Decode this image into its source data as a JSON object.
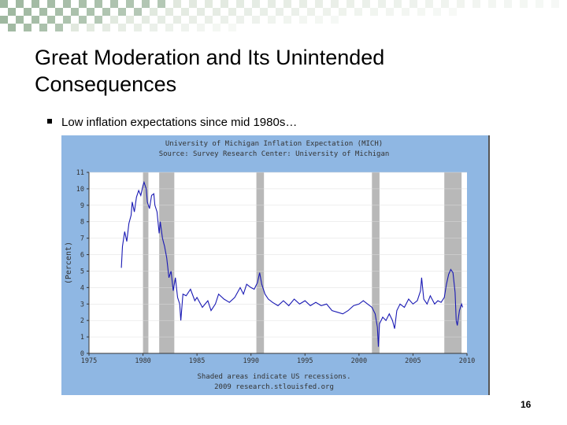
{
  "slide": {
    "title_line1": "Great Moderation and Its Unintended",
    "title_line2": "Consequences",
    "bullet": "Low inflation expectations since mid 1980s…",
    "page_number": "16"
  },
  "colors": {
    "chart_bg": "#8fb7e3",
    "plot_bg": "#ffffff",
    "recession": "#b8b8b8",
    "line": "#1a1ab4",
    "checker_a": "#9fb8a0",
    "checker_b": "#d7e1d4"
  },
  "chart_data": {
    "type": "line",
    "title": "University of Michigan Inflation Expectation (MICH)",
    "source": "Source: Survey Research Center: University of Michigan",
    "ylabel": "(Percent)",
    "footer_line1": "Shaded areas indicate US recessions.",
    "footer_line2": "2009 research.stlouisfed.org",
    "xlim": [
      1975,
      2010
    ],
    "ylim": [
      0,
      11
    ],
    "x_ticks": [
      "1975",
      "1980",
      "1985",
      "1990",
      "1995",
      "2000",
      "2005",
      "2010"
    ],
    "y_ticks": [
      "0",
      "1",
      "2",
      "3",
      "4",
      "5",
      "6",
      "7",
      "8",
      "9",
      "10",
      "11"
    ],
    "recessions": [
      [
        1980.0,
        1980.5
      ],
      [
        1981.5,
        1982.9
      ],
      [
        1990.5,
        1991.2
      ],
      [
        2001.2,
        2001.9
      ],
      [
        2007.9,
        2009.5
      ]
    ],
    "series": [
      {
        "name": "MICH",
        "points": [
          [
            1978.0,
            5.2
          ],
          [
            1978.1,
            6.5
          ],
          [
            1978.3,
            7.4
          ],
          [
            1978.5,
            6.8
          ],
          [
            1978.7,
            7.9
          ],
          [
            1978.9,
            8.4
          ],
          [
            1979.0,
            9.2
          ],
          [
            1979.2,
            8.6
          ],
          [
            1979.4,
            9.5
          ],
          [
            1979.6,
            9.9
          ],
          [
            1979.8,
            9.6
          ],
          [
            1980.0,
            10.2
          ],
          [
            1980.1,
            10.4
          ],
          [
            1980.3,
            10.0
          ],
          [
            1980.4,
            9.2
          ],
          [
            1980.6,
            8.8
          ],
          [
            1980.8,
            9.6
          ],
          [
            1981.0,
            9.7
          ],
          [
            1981.1,
            9.0
          ],
          [
            1981.3,
            8.6
          ],
          [
            1981.5,
            7.3
          ],
          [
            1981.6,
            8.0
          ],
          [
            1981.8,
            7.0
          ],
          [
            1982.0,
            6.5
          ],
          [
            1982.2,
            5.8
          ],
          [
            1982.4,
            4.6
          ],
          [
            1982.6,
            5.0
          ],
          [
            1982.8,
            3.8
          ],
          [
            1983.0,
            4.6
          ],
          [
            1983.2,
            3.4
          ],
          [
            1983.4,
            3.0
          ],
          [
            1983.5,
            2.0
          ],
          [
            1983.7,
            3.6
          ],
          [
            1984.0,
            3.5
          ],
          [
            1984.4,
            3.9
          ],
          [
            1984.8,
            3.2
          ],
          [
            1985.0,
            3.4
          ],
          [
            1985.5,
            2.8
          ],
          [
            1986.0,
            3.2
          ],
          [
            1986.3,
            2.6
          ],
          [
            1986.7,
            3.0
          ],
          [
            1987.0,
            3.6
          ],
          [
            1987.5,
            3.3
          ],
          [
            1988.0,
            3.1
          ],
          [
            1988.5,
            3.4
          ],
          [
            1989.0,
            4.0
          ],
          [
            1989.3,
            3.6
          ],
          [
            1989.6,
            4.2
          ],
          [
            1990.0,
            4.0
          ],
          [
            1990.3,
            3.9
          ],
          [
            1990.6,
            4.3
          ],
          [
            1990.8,
            4.9
          ],
          [
            1991.0,
            4.2
          ],
          [
            1991.3,
            3.6
          ],
          [
            1991.6,
            3.3
          ],
          [
            1992.0,
            3.1
          ],
          [
            1992.5,
            2.9
          ],
          [
            1993.0,
            3.2
          ],
          [
            1993.5,
            2.9
          ],
          [
            1994.0,
            3.3
          ],
          [
            1994.5,
            3.0
          ],
          [
            1995.0,
            3.2
          ],
          [
            1995.5,
            2.9
          ],
          [
            1996.0,
            3.1
          ],
          [
            1996.5,
            2.9
          ],
          [
            1997.0,
            3.0
          ],
          [
            1997.5,
            2.6
          ],
          [
            1998.0,
            2.5
          ],
          [
            1998.5,
            2.4
          ],
          [
            1999.0,
            2.6
          ],
          [
            1999.5,
            2.9
          ],
          [
            2000.0,
            3.0
          ],
          [
            2000.4,
            3.2
          ],
          [
            2000.8,
            3.0
          ],
          [
            2001.2,
            2.8
          ],
          [
            2001.5,
            2.4
          ],
          [
            2001.7,
            1.6
          ],
          [
            2001.8,
            0.4
          ],
          [
            2001.9,
            1.8
          ],
          [
            2002.2,
            2.2
          ],
          [
            2002.5,
            2.0
          ],
          [
            2002.8,
            2.4
          ],
          [
            2003.1,
            2.0
          ],
          [
            2003.3,
            1.5
          ],
          [
            2003.5,
            2.6
          ],
          [
            2003.8,
            3.0
          ],
          [
            2004.2,
            2.8
          ],
          [
            2004.6,
            3.3
          ],
          [
            2005.0,
            3.0
          ],
          [
            2005.4,
            3.2
          ],
          [
            2005.7,
            3.8
          ],
          [
            2005.8,
            4.6
          ],
          [
            2006.0,
            3.3
          ],
          [
            2006.3,
            3.0
          ],
          [
            2006.6,
            3.5
          ],
          [
            2007.0,
            3.0
          ],
          [
            2007.3,
            3.2
          ],
          [
            2007.6,
            3.1
          ],
          [
            2007.9,
            3.4
          ],
          [
            2008.1,
            4.2
          ],
          [
            2008.3,
            4.8
          ],
          [
            2008.5,
            5.1
          ],
          [
            2008.7,
            4.9
          ],
          [
            2008.9,
            3.7
          ],
          [
            2009.0,
            2.0
          ],
          [
            2009.1,
            1.7
          ],
          [
            2009.3,
            2.6
          ],
          [
            2009.5,
            3.0
          ],
          [
            2009.6,
            2.8
          ]
        ]
      }
    ]
  }
}
